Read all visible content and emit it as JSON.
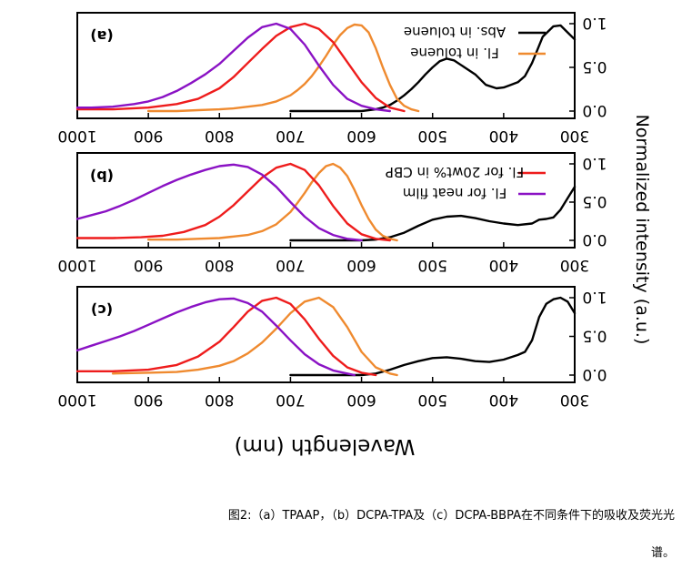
{
  "figure": {
    "x_axis_label": "Wavelength (nm)",
    "y_axis_label": "Normalized intensity (a.u.)",
    "caption_line1": "图2:（a）TPAAP，（b）DCPA-TPA及（c）DCPA-BBPA在不同条件下的吸收及荧光光",
    "caption_line2": "谱。",
    "colors": {
      "black": "#000000",
      "orange": "#ef8a2f",
      "red": "#ee1c1c",
      "purple": "#8a12c4"
    }
  },
  "chart_data": [
    {
      "type": "line",
      "panel_label": "(a)",
      "xlim": [
        300,
        1000
      ],
      "ylim": [
        0.0,
        1.0
      ],
      "x_reversed": true,
      "xticks": [
        1000,
        900,
        800,
        700,
        600,
        500,
        400,
        300
      ],
      "yticks": [
        0.0,
        0.5,
        1.0
      ],
      "legend": [
        {
          "label": "Abs. in toluene",
          "color": "#000000"
        },
        {
          "label": "Fl. in toluene",
          "color": "#ef8a2f"
        }
      ],
      "series": [
        {
          "name": "Abs. in toluene",
          "color": "#000000",
          "x": [
            300,
            310,
            320,
            330,
            345,
            360,
            370,
            380,
            390,
            400,
            410,
            425,
            440,
            455,
            470,
            480,
            490,
            500,
            510,
            520,
            530,
            540,
            550,
            560,
            570,
            580,
            600,
            650,
            700
          ],
          "y": [
            0.82,
            0.9,
            0.98,
            0.97,
            0.85,
            0.55,
            0.4,
            0.33,
            0.3,
            0.27,
            0.26,
            0.3,
            0.42,
            0.5,
            0.58,
            0.6,
            0.57,
            0.5,
            0.42,
            0.33,
            0.25,
            0.18,
            0.12,
            0.07,
            0.04,
            0.02,
            0.0,
            0.0,
            0.0
          ]
        },
        {
          "name": "Fl. in toluene",
          "color": "#ef8a2f",
          "x": [
            520,
            530,
            540,
            550,
            560,
            570,
            580,
            590,
            600,
            610,
            620,
            630,
            640,
            650,
            660,
            670,
            680,
            690,
            700,
            720,
            740,
            760,
            780,
            800,
            830,
            860,
            900
          ],
          "y": [
            0.0,
            0.02,
            0.06,
            0.14,
            0.3,
            0.5,
            0.72,
            0.9,
            0.98,
            0.99,
            0.95,
            0.87,
            0.76,
            0.63,
            0.51,
            0.4,
            0.31,
            0.24,
            0.18,
            0.11,
            0.07,
            0.05,
            0.03,
            0.02,
            0.01,
            0.0,
            0.0
          ]
        },
        {
          "color": "#ee1c1c",
          "x": [
            540,
            560,
            580,
            600,
            620,
            640,
            660,
            680,
            700,
            720,
            740,
            760,
            780,
            800,
            830,
            860,
            900,
            950,
            1000
          ],
          "y": [
            0.0,
            0.04,
            0.15,
            0.33,
            0.56,
            0.79,
            0.94,
            1.0,
            0.96,
            0.86,
            0.71,
            0.55,
            0.39,
            0.26,
            0.14,
            0.08,
            0.04,
            0.02,
            0.02
          ]
        },
        {
          "color": "#8a12c4",
          "x": [
            560,
            580,
            600,
            620,
            640,
            660,
            680,
            700,
            720,
            740,
            760,
            780,
            800,
            820,
            840,
            860,
            880,
            900,
            920,
            950,
            980,
            1000
          ],
          "y": [
            0.0,
            0.02,
            0.06,
            0.14,
            0.3,
            0.52,
            0.76,
            0.94,
            1.0,
            0.96,
            0.84,
            0.69,
            0.54,
            0.42,
            0.32,
            0.23,
            0.16,
            0.11,
            0.08,
            0.05,
            0.04,
            0.04
          ]
        }
      ]
    },
    {
      "type": "line",
      "panel_label": "(b)",
      "xlim": [
        300,
        1000
      ],
      "ylim": [
        0.0,
        1.0
      ],
      "x_reversed": true,
      "xticks": [
        1000,
        900,
        800,
        700,
        600,
        500,
        400,
        300
      ],
      "yticks": [
        0.0,
        0.5,
        1.0
      ],
      "legend": [
        {
          "label": "Fl. for 20wt% in CBP",
          "color": "#ee1c1c"
        },
        {
          "label": "Fl. for neat film",
          "color": "#8a12c4"
        }
      ],
      "series": [
        {
          "color": "#000000",
          "x": [
            300,
            310,
            320,
            330,
            340,
            350,
            360,
            380,
            400,
            420,
            440,
            460,
            480,
            500,
            520,
            540,
            560,
            580,
            600,
            650,
            700
          ],
          "y": [
            0.7,
            0.55,
            0.4,
            0.3,
            0.28,
            0.27,
            0.22,
            0.2,
            0.22,
            0.25,
            0.29,
            0.32,
            0.31,
            0.27,
            0.19,
            0.1,
            0.04,
            0.01,
            0.0,
            0.0,
            0.0
          ]
        },
        {
          "color": "#ef8a2f",
          "x": [
            550,
            560,
            570,
            580,
            590,
            600,
            610,
            620,
            630,
            640,
            650,
            660,
            670,
            680,
            690,
            700,
            720,
            740,
            760,
            780,
            800,
            830,
            860,
            900
          ],
          "y": [
            0.0,
            0.02,
            0.06,
            0.14,
            0.28,
            0.46,
            0.66,
            0.84,
            0.95,
            1.0,
            0.97,
            0.88,
            0.76,
            0.62,
            0.49,
            0.37,
            0.21,
            0.12,
            0.07,
            0.05,
            0.03,
            0.02,
            0.01,
            0.01
          ]
        },
        {
          "color": "#ee1c1c",
          "x": [
            560,
            580,
            600,
            620,
            640,
            660,
            680,
            700,
            720,
            740,
            760,
            780,
            800,
            820,
            850,
            880,
            910,
            950,
            1000
          ],
          "y": [
            0.0,
            0.02,
            0.08,
            0.22,
            0.45,
            0.72,
            0.92,
            1.0,
            0.95,
            0.82,
            0.64,
            0.46,
            0.31,
            0.2,
            0.11,
            0.06,
            0.04,
            0.03,
            0.03
          ]
        },
        {
          "color": "#8a12c4",
          "x": [
            600,
            620,
            640,
            660,
            680,
            700,
            720,
            740,
            760,
            780,
            800,
            820,
            840,
            860,
            880,
            900,
            920,
            940,
            960,
            980,
            1000
          ],
          "y": [
            0.0,
            0.02,
            0.07,
            0.16,
            0.31,
            0.5,
            0.7,
            0.86,
            0.96,
            0.99,
            0.97,
            0.92,
            0.86,
            0.79,
            0.71,
            0.62,
            0.53,
            0.45,
            0.38,
            0.33,
            0.28
          ]
        }
      ]
    },
    {
      "type": "line",
      "panel_label": "(c)",
      "xlim": [
        300,
        1000
      ],
      "ylim": [
        0.0,
        1.0
      ],
      "x_reversed": true,
      "xticks": [
        1000,
        900,
        800,
        700,
        600,
        500,
        400,
        300
      ],
      "yticks": [
        0.0,
        0.5,
        1.0
      ],
      "series": [
        {
          "color": "#000000",
          "x": [
            300,
            310,
            320,
            330,
            340,
            350,
            360,
            370,
            380,
            400,
            420,
            440,
            460,
            480,
            500,
            520,
            540,
            560,
            580,
            600,
            650,
            700
          ],
          "y": [
            0.8,
            0.95,
            1.0,
            0.98,
            0.92,
            0.75,
            0.45,
            0.3,
            0.26,
            0.2,
            0.17,
            0.18,
            0.21,
            0.23,
            0.22,
            0.18,
            0.13,
            0.07,
            0.02,
            0.0,
            0.0,
            0.0
          ]
        },
        {
          "color": "#ef8a2f",
          "x": [
            550,
            560,
            580,
            600,
            620,
            640,
            660,
            680,
            700,
            720,
            740,
            760,
            780,
            800,
            830,
            860,
            900,
            950
          ],
          "y": [
            0.0,
            0.02,
            0.1,
            0.3,
            0.62,
            0.88,
            1.0,
            0.95,
            0.8,
            0.6,
            0.42,
            0.28,
            0.18,
            0.12,
            0.07,
            0.04,
            0.03,
            0.02
          ]
        },
        {
          "color": "#ee1c1c",
          "x": [
            580,
            600,
            620,
            640,
            660,
            680,
            700,
            720,
            740,
            760,
            780,
            800,
            830,
            860,
            900,
            950,
            1000
          ],
          "y": [
            0.0,
            0.03,
            0.1,
            0.25,
            0.47,
            0.72,
            0.92,
            1.0,
            0.96,
            0.82,
            0.62,
            0.43,
            0.24,
            0.13,
            0.07,
            0.05,
            0.05
          ]
        },
        {
          "color": "#8a12c4",
          "x": [
            610,
            620,
            640,
            660,
            680,
            700,
            720,
            740,
            760,
            780,
            800,
            820,
            840,
            860,
            880,
            900,
            920,
            940,
            960,
            980,
            1000
          ],
          "y": [
            0.0,
            0.02,
            0.06,
            0.14,
            0.27,
            0.45,
            0.64,
            0.82,
            0.93,
            0.99,
            0.98,
            0.94,
            0.88,
            0.81,
            0.73,
            0.65,
            0.57,
            0.5,
            0.44,
            0.38,
            0.32
          ]
        }
      ]
    }
  ]
}
